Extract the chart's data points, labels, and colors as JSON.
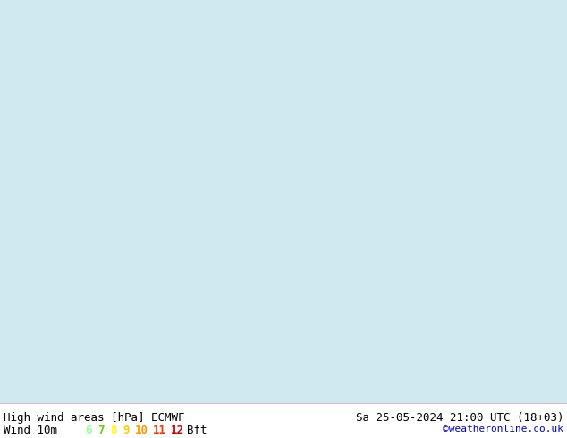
{
  "title_left": "High wind areas [hPa] ECMWF",
  "title_right": "Sa 25-05-2024 21:00 UTC (18+03)",
  "legend_label": "Wind 10m",
  "legend_values": [
    "6",
    "7",
    "8",
    "9",
    "10",
    "11",
    "12"
  ],
  "legend_colors": [
    "#99ff99",
    "#66cc00",
    "#ffff00",
    "#ffcc00",
    "#ff9900",
    "#ff3300",
    "#cc0000"
  ],
  "legend_suffix": "Bft",
  "watermark": "©weatheronline.co.uk",
  "bg_color": "#ffffff",
  "map_bg": "#d0e8f0",
  "bottom_bar_color": "#ffffff",
  "fig_width": 6.34,
  "fig_height": 4.9,
  "dpi": 100,
  "bottom_text_color": "#000000",
  "watermark_color": "#0000cc",
  "font_size_title": 9,
  "font_size_legend": 9,
  "font_size_watermark": 8
}
